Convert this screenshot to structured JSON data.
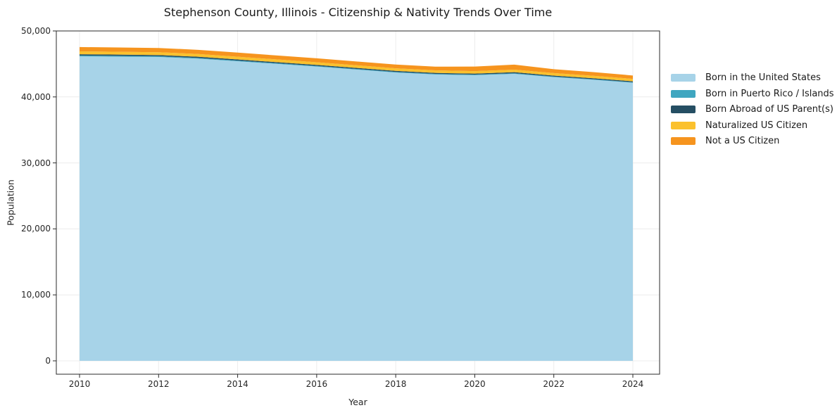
{
  "chart_data": {
    "type": "area",
    "stacked": true,
    "title": "Stephenson County, Illinois - Citizenship & Nativity Trends Over Time",
    "xlabel": "Year",
    "ylabel": "Population",
    "x": [
      2010,
      2011,
      2012,
      2013,
      2014,
      2015,
      2016,
      2017,
      2018,
      2019,
      2020,
      2021,
      2022,
      2023,
      2024
    ],
    "series": [
      {
        "name": "Born in the United States",
        "color": "#a7d3e8",
        "values": [
          46150,
          46100,
          46050,
          45800,
          45400,
          45000,
          44600,
          44150,
          43700,
          43400,
          43300,
          43500,
          43000,
          42600,
          42150
        ]
      },
      {
        "name": "Born in Puerto Rico / Islands",
        "color": "#3fa6c0",
        "values": [
          130,
          125,
          120,
          115,
          110,
          105,
          100,
          100,
          95,
          90,
          90,
          95,
          90,
          85,
          80
        ]
      },
      {
        "name": "Born Abroad of US Parent(s)",
        "color": "#254e63",
        "values": [
          190,
          185,
          180,
          175,
          170,
          165,
          160,
          155,
          150,
          150,
          145,
          150,
          145,
          140,
          140
        ]
      },
      {
        "name": "Naturalized US Citizen",
        "color": "#fbc12d",
        "values": [
          440,
          435,
          430,
          425,
          420,
          410,
          400,
          395,
          390,
          385,
          380,
          390,
          380,
          375,
          370
        ]
      },
      {
        "name": "Not a US Citizen",
        "color": "#f6941e",
        "values": [
          650,
          645,
          640,
          625,
          615,
          600,
          590,
          580,
          570,
          565,
          685,
          765,
          585,
          560,
          510
        ]
      }
    ],
    "x_ticks": [
      2010,
      2012,
      2014,
      2016,
      2018,
      2020,
      2022,
      2024
    ],
    "y_ticks": [
      0,
      10000,
      20000,
      30000,
      40000,
      50000
    ],
    "y_tick_labels": [
      "0",
      "10,000",
      "20,000",
      "30,000",
      "40,000",
      "50,000"
    ],
    "xlim": [
      2009.412,
      2024.677
    ],
    "ylim": [
      -2025,
      50000
    ],
    "grid": true,
    "legend_position": "right",
    "grid_color": "#ececec",
    "frame_color": "#2a2a2a",
    "background_color": "#ffffff"
  }
}
